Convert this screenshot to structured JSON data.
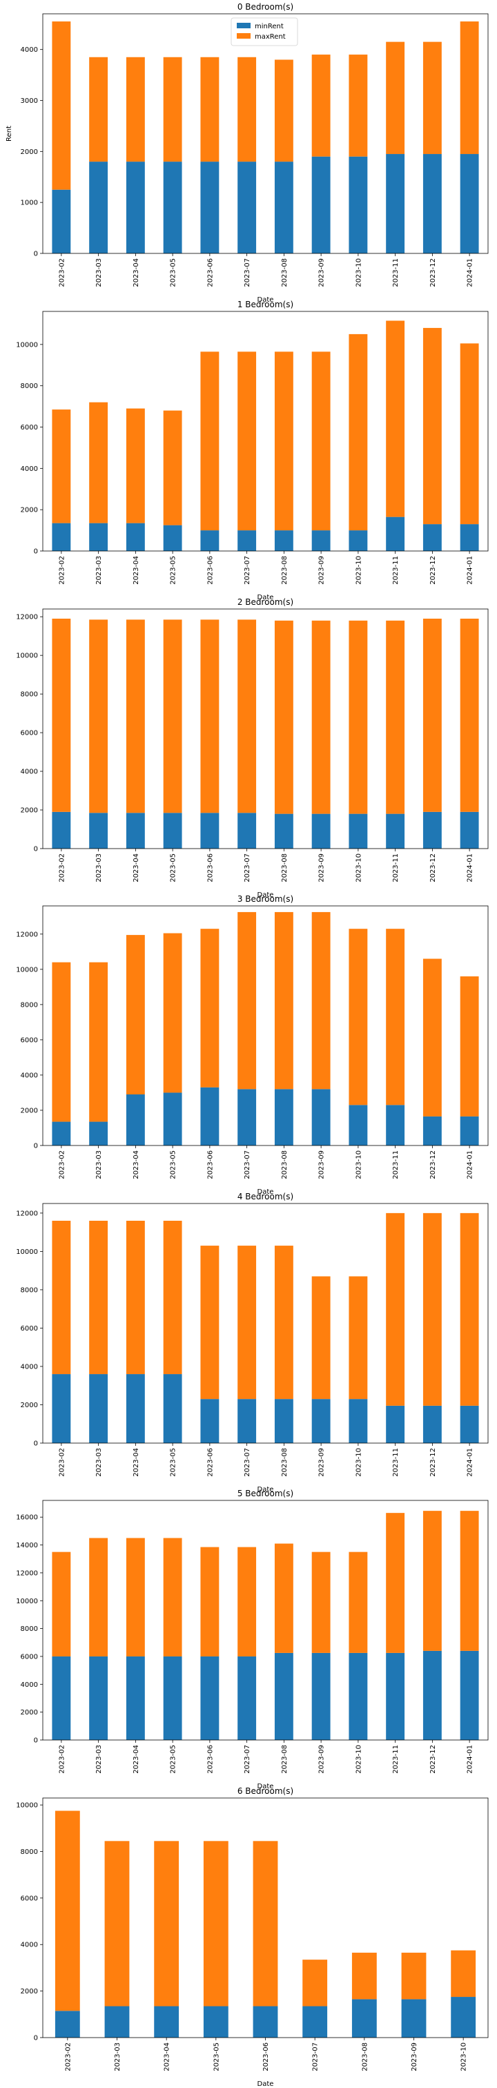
{
  "chart_data": [
    {
      "type": "bar",
      "stacked": true,
      "title": "0 Bedroom(s)",
      "xlabel": "Date",
      "ylabel": "Rent",
      "categories": [
        "2023-02",
        "2023-03",
        "2023-04",
        "2023-05",
        "2023-06",
        "2023-07",
        "2023-08",
        "2023-09",
        "2023-10",
        "2023-11",
        "2023-12",
        "2024-01"
      ],
      "ylim": [
        0,
        4700
      ],
      "yticks": [
        0,
        1000,
        2000,
        3000,
        4000
      ],
      "legend": "upper-center",
      "series": [
        {
          "name": "minRent",
          "color": "#1f77b4",
          "values": [
            1250,
            1800,
            1800,
            1800,
            1800,
            1800,
            1800,
            1900,
            1900,
            1950,
            1950,
            1950
          ]
        },
        {
          "name": "maxRent",
          "color": "#ff7f0e",
          "values": [
            3300,
            2050,
            2050,
            2050,
            2050,
            2050,
            2000,
            2000,
            2000,
            2200,
            2200,
            2600
          ]
        }
      ]
    },
    {
      "type": "bar",
      "stacked": true,
      "title": "1 Bedroom(s)",
      "xlabel": "Date",
      "ylabel": "",
      "categories": [
        "2023-02",
        "2023-03",
        "2023-04",
        "2023-05",
        "2023-06",
        "2023-07",
        "2023-08",
        "2023-09",
        "2023-10",
        "2023-11",
        "2023-12",
        "2024-01"
      ],
      "ylim": [
        0,
        11600
      ],
      "yticks": [
        0,
        2000,
        4000,
        6000,
        8000,
        10000
      ],
      "series": [
        {
          "name": "minRent",
          "color": "#1f77b4",
          "values": [
            1350,
            1350,
            1350,
            1250,
            1000,
            1000,
            1000,
            1000,
            1000,
            1650,
            1300,
            1300
          ]
        },
        {
          "name": "maxRent",
          "color": "#ff7f0e",
          "values": [
            5500,
            5850,
            5550,
            5550,
            8650,
            8650,
            8650,
            8650,
            9500,
            9500,
            9500,
            8750
          ]
        }
      ]
    },
    {
      "type": "bar",
      "stacked": true,
      "title": "2 Bedroom(s)",
      "xlabel": "Date",
      "ylabel": "",
      "categories": [
        "2023-02",
        "2023-03",
        "2023-04",
        "2023-05",
        "2023-06",
        "2023-07",
        "2023-08",
        "2023-09",
        "2023-10",
        "2023-11",
        "2023-12",
        "2024-01"
      ],
      "ylim": [
        0,
        12400
      ],
      "yticks": [
        0,
        2000,
        4000,
        6000,
        8000,
        10000,
        12000
      ],
      "series": [
        {
          "name": "minRent",
          "color": "#1f77b4",
          "values": [
            1900,
            1850,
            1850,
            1850,
            1850,
            1850,
            1800,
            1800,
            1800,
            1800,
            1900,
            1900
          ]
        },
        {
          "name": "maxRent",
          "color": "#ff7f0e",
          "values": [
            10000,
            10000,
            10000,
            10000,
            10000,
            10000,
            10000,
            10000,
            10000,
            10000,
            10000,
            10000
          ]
        }
      ]
    },
    {
      "type": "bar",
      "stacked": true,
      "title": "3 Bedroom(s)",
      "xlabel": "Date",
      "ylabel": "",
      "categories": [
        "2023-02",
        "2023-03",
        "2023-04",
        "2023-05",
        "2023-06",
        "2023-07",
        "2023-08",
        "2023-09",
        "2023-10",
        "2023-11",
        "2023-12",
        "2024-01"
      ],
      "ylim": [
        0,
        13600
      ],
      "yticks": [
        0,
        2000,
        4000,
        6000,
        8000,
        10000,
        12000
      ],
      "series": [
        {
          "name": "minRent",
          "color": "#1f77b4",
          "values": [
            1350,
            1350,
            2900,
            3000,
            3300,
            3200,
            3200,
            3200,
            2300,
            2300,
            1650,
            1650
          ]
        },
        {
          "name": "maxRent",
          "color": "#ff7f0e",
          "values": [
            9050,
            9050,
            9050,
            9050,
            9000,
            10050,
            10050,
            10050,
            10000,
            10000,
            8950,
            7950
          ]
        }
      ]
    },
    {
      "type": "bar",
      "stacked": true,
      "title": "4 Bedroom(s)",
      "xlabel": "Date",
      "ylabel": "",
      "categories": [
        "2023-02",
        "2023-03",
        "2023-04",
        "2023-05",
        "2023-06",
        "2023-07",
        "2023-08",
        "2023-09",
        "2023-10",
        "2023-11",
        "2023-12",
        "2024-01"
      ],
      "ylim": [
        0,
        12500
      ],
      "yticks": [
        0,
        2000,
        4000,
        6000,
        8000,
        10000,
        12000
      ],
      "series": [
        {
          "name": "minRent",
          "color": "#1f77b4",
          "values": [
            3600,
            3600,
            3600,
            3600,
            2300,
            2300,
            2300,
            2300,
            2300,
            1950,
            1950,
            1950
          ]
        },
        {
          "name": "maxRent",
          "color": "#ff7f0e",
          "values": [
            8000,
            8000,
            8000,
            8000,
            8000,
            8000,
            8000,
            6400,
            6400,
            10050,
            10050,
            10050
          ]
        }
      ]
    },
    {
      "type": "bar",
      "stacked": true,
      "title": "5 Bedroom(s)",
      "xlabel": "Date",
      "ylabel": "",
      "categories": [
        "2023-02",
        "2023-03",
        "2023-04",
        "2023-05",
        "2023-06",
        "2023-07",
        "2023-08",
        "2023-09",
        "2023-10",
        "2023-11",
        "2023-12",
        "2024-01"
      ],
      "ylim": [
        0,
        17200
      ],
      "yticks": [
        0,
        2000,
        4000,
        6000,
        8000,
        10000,
        12000,
        14000,
        16000
      ],
      "series": [
        {
          "name": "minRent",
          "color": "#1f77b4",
          "values": [
            6000,
            6000,
            6000,
            6000,
            6000,
            6000,
            6250,
            6250,
            6250,
            6250,
            6400,
            6400
          ]
        },
        {
          "name": "maxRent",
          "color": "#ff7f0e",
          "values": [
            7500,
            8500,
            8500,
            8500,
            7850,
            7850,
            7850,
            7250,
            7250,
            10050,
            10050,
            10050
          ]
        }
      ]
    },
    {
      "type": "bar",
      "stacked": true,
      "title": "6 Bedroom(s)",
      "xlabel": "Date",
      "ylabel": "",
      "categories": [
        "2023-02",
        "2023-03",
        "2023-04",
        "2023-05",
        "2023-06",
        "2023-07",
        "2023-08",
        "2023-09",
        "2023-10"
      ],
      "ylim": [
        0,
        10300
      ],
      "yticks": [
        0,
        2000,
        4000,
        6000,
        8000,
        10000
      ],
      "series": [
        {
          "name": "minRent",
          "color": "#1f77b4",
          "values": [
            1150,
            1350,
            1350,
            1350,
            1350,
            1350,
            1650,
            1650,
            1750
          ]
        },
        {
          "name": "maxRent",
          "color": "#ff7f0e",
          "values": [
            8600,
            7100,
            7100,
            7100,
            7100,
            2000,
            2000,
            2000,
            2000
          ]
        }
      ]
    }
  ]
}
